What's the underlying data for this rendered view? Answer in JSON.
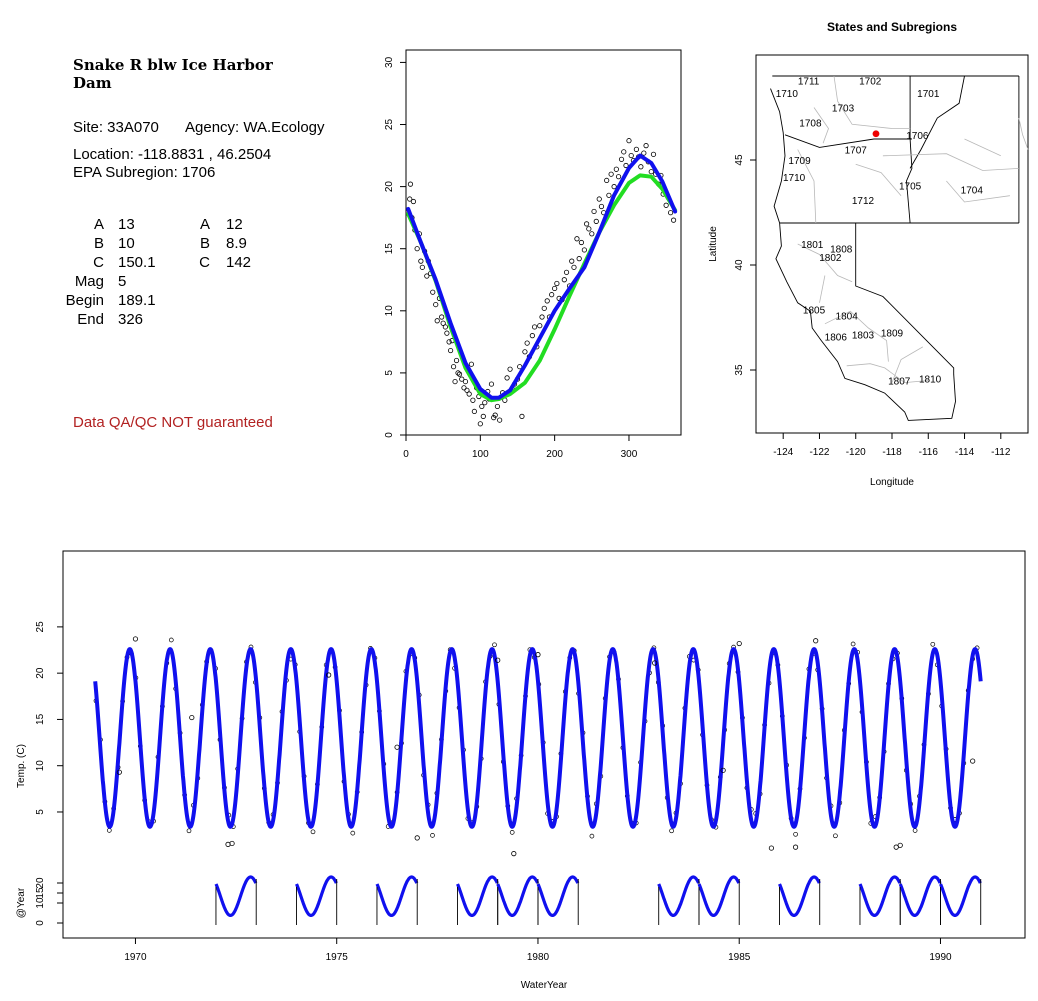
{
  "station": {
    "title": "Snake R blw Ice Harbor Dam",
    "site_label": "Site: 33A070",
    "agency_label": "Agency: WA.Ecology",
    "location_label": "Location: -118.8831 , 46.2504",
    "subregion_label": "EPA Subregion: 1706"
  },
  "params": {
    "rows": [
      {
        "label": "A",
        "v1": "13",
        "label2": "A",
        "v2": "12"
      },
      {
        "label": "B",
        "v1": "10",
        "label2": "B",
        "v2": "8.9"
      },
      {
        "label": "C",
        "v1": "150.1",
        "label2": "C",
        "v2": "142"
      },
      {
        "label": "Mag",
        "v1": "5",
        "label2": "",
        "v2": ""
      },
      {
        "label": "Begin",
        "v1": "189.1",
        "label2": "",
        "v2": ""
      },
      {
        "label": "End",
        "v1": "326",
        "label2": "",
        "v2": ""
      }
    ]
  },
  "disclaimer": "Data QA/QC NOT guaranteed",
  "colors": {
    "blue": "#1010ee",
    "green": "#22dd22",
    "red": "#ee0000",
    "accent_text": "#b22222"
  },
  "chart_data": [
    {
      "type": "scatter",
      "id": "seasonal",
      "title": "",
      "xlabel": "",
      "ylabel": "",
      "xlim": [
        0,
        370
      ],
      "ylim": [
        0,
        31
      ],
      "x_ticks": [
        0,
        100,
        200,
        300
      ],
      "y_ticks": [
        0,
        5,
        10,
        15,
        20,
        25,
        30
      ],
      "series": [
        {
          "style": "curve",
          "color": "blue",
          "x": [
            3,
            20,
            40,
            60,
            80,
            100,
            115,
            125,
            140,
            160,
            180,
            200,
            220,
            240,
            260,
            280,
            300,
            315,
            330,
            345,
            362
          ],
          "y": [
            18.2,
            15.5,
            12.5,
            9.0,
            5.8,
            3.7,
            3.0,
            3.0,
            3.6,
            5.6,
            7.8,
            10.0,
            11.8,
            13.5,
            16.3,
            19.3,
            21.5,
            22.5,
            21.9,
            20.4,
            18.0
          ]
        },
        {
          "style": "curve",
          "color": "green",
          "x": [
            3,
            20,
            40,
            60,
            80,
            100,
            115,
            125,
            140,
            160,
            180,
            200,
            220,
            240,
            260,
            280,
            300,
            315,
            330,
            345,
            362
          ],
          "y": [
            17.8,
            15.5,
            12.4,
            8.7,
            5.4,
            3.3,
            2.8,
            2.9,
            3.3,
            4.2,
            6.0,
            8.5,
            11.2,
            13.8,
            16.3,
            18.5,
            20.3,
            20.9,
            20.8,
            19.8,
            18.1
          ]
        },
        {
          "style": "points",
          "x": [
            5,
            6,
            8,
            10,
            12,
            15,
            18,
            20,
            22,
            25,
            28,
            30,
            33,
            36,
            40,
            42,
            45,
            48,
            50,
            53,
            55,
            58,
            60,
            62,
            64,
            66,
            68,
            70,
            72,
            75,
            78,
            80,
            82,
            85,
            88,
            90,
            92,
            95,
            98,
            100,
            102,
            104,
            106,
            110,
            112,
            115,
            118,
            120,
            123,
            126,
            130,
            133,
            136,
            140,
            143,
            146,
            150,
            153,
            156,
            160,
            163,
            166,
            170,
            173,
            176,
            180,
            183,
            186,
            190,
            193,
            196,
            200,
            203,
            206,
            210,
            213,
            216,
            220,
            223,
            226,
            230,
            233,
            236,
            240,
            243,
            246,
            250,
            253,
            256,
            260,
            263,
            266,
            270,
            273,
            276,
            280,
            283,
            286,
            290,
            293,
            296,
            300,
            303,
            306,
            310,
            313,
            316,
            320,
            323,
            326,
            330,
            333,
            336,
            340,
            343,
            346,
            350,
            353,
            356,
            360
          ],
          "y": [
            19.0,
            20.2,
            17.5,
            18.8,
            16.5,
            15.0,
            16.2,
            14.0,
            13.5,
            14.8,
            12.8,
            14.0,
            13.0,
            11.5,
            10.5,
            9.2,
            11.0,
            9.5,
            9.0,
            8.7,
            8.2,
            7.5,
            6.8,
            7.6,
            5.5,
            4.3,
            6.0,
            5.0,
            4.9,
            4.5,
            3.8,
            4.3,
            3.6,
            3.3,
            5.7,
            2.8,
            1.9,
            3.8,
            3.1,
            0.9,
            2.3,
            1.5,
            2.6,
            3.5,
            2.9,
            4.1,
            1.4,
            1.6,
            2.3,
            1.2,
            3.4,
            2.8,
            4.6,
            5.3,
            3.7,
            4.1,
            4.5,
            5.5,
            1.5,
            6.7,
            7.4,
            6.3,
            8.0,
            8.7,
            7.1,
            8.8,
            9.5,
            10.2,
            10.8,
            9.5,
            11.3,
            11.8,
            12.2,
            11.0,
            10.9,
            12.5,
            13.1,
            12.0,
            14.0,
            13.5,
            15.8,
            14.2,
            15.5,
            14.9,
            17.0,
            16.6,
            16.2,
            18.0,
            17.2,
            19.0,
            18.4,
            17.9,
            20.5,
            19.3,
            21.0,
            20.0,
            21.4,
            20.8,
            22.2,
            22.8,
            21.7,
            23.7,
            22.5,
            22.1,
            23.0,
            22.4,
            21.6,
            22.7,
            23.3,
            22.0,
            21.2,
            22.6,
            21.0,
            20.2,
            20.9,
            19.4,
            18.5,
            19.1,
            17.9,
            17.3
          ]
        }
      ]
    },
    {
      "type": "scatter",
      "id": "map",
      "title": "States and Subregions",
      "xlabel": "Longitude",
      "ylabel": "Latitude",
      "xlim": [
        -125.5,
        -110.5
      ],
      "ylim": [
        32,
        50
      ],
      "x_ticks": [
        -124,
        -122,
        -120,
        -118,
        -116,
        -114,
        -112
      ],
      "y_ticks": [
        35,
        40,
        45
      ],
      "site": {
        "x": -118.8831,
        "y": 46.2504
      },
      "region_labels": [
        {
          "name": "1702",
          "x": -119.2,
          "y": 48.6
        },
        {
          "name": "1701",
          "x": -116.0,
          "y": 48.0
        },
        {
          "name": "1711",
          "x": -122.6,
          "y": 48.6
        },
        {
          "name": "1710",
          "x": -123.8,
          "y": 48.0
        },
        {
          "name": "1703",
          "x": -120.7,
          "y": 47.3
        },
        {
          "name": "1708",
          "x": -122.5,
          "y": 46.6
        },
        {
          "name": "1706",
          "x": -116.6,
          "y": 46.0
        },
        {
          "name": "1707",
          "x": -120.0,
          "y": 45.3
        },
        {
          "name": "1709",
          "x": -123.1,
          "y": 44.8
        },
        {
          "name": "1710",
          "x": -123.4,
          "y": 44.0
        },
        {
          "name": "1705",
          "x": -117.0,
          "y": 43.6
        },
        {
          "name": "1704",
          "x": -113.6,
          "y": 43.4
        },
        {
          "name": "1712",
          "x": -119.6,
          "y": 42.9
        },
        {
          "name": "1801",
          "x": -122.4,
          "y": 40.8
        },
        {
          "name": "1808",
          "x": -120.8,
          "y": 40.6
        },
        {
          "name": "1802",
          "x": -121.4,
          "y": 40.2
        },
        {
          "name": "1805",
          "x": -122.3,
          "y": 37.7
        },
        {
          "name": "1804",
          "x": -120.5,
          "y": 37.4
        },
        {
          "name": "1806",
          "x": -121.1,
          "y": 36.4
        },
        {
          "name": "1803",
          "x": -119.6,
          "y": 36.5
        },
        {
          "name": "1809",
          "x": -118.0,
          "y": 36.6
        },
        {
          "name": "1807",
          "x": -117.6,
          "y": 34.3
        },
        {
          "name": "1810",
          "x": -115.9,
          "y": 34.4
        }
      ]
    },
    {
      "type": "line",
      "id": "timeseries",
      "title": "",
      "xlabel": "WaterYear",
      "ylabel": "Temp. (C)",
      "ylabel2": "@Year",
      "xlim": [
        1968.2,
        1992.1
      ],
      "ylim": [
        1,
        30
      ],
      "x_ticks": [
        1970,
        1975,
        1980,
        1985,
        1990
      ],
      "y_ticks": [
        5,
        10,
        15,
        20,
        25
      ],
      "y2_ticks": [
        0,
        10,
        15,
        20
      ],
      "y2_tick_labels": [
        "0",
        "10",
        "15",
        "20"
      ],
      "series": [
        {
          "name": "",
          "color": "blue",
          "x_start": 1969.0,
          "x_end": 1991.0,
          "mean": 13,
          "amp": 9.6,
          "peak_phase": 0.86
        },
        {
          "name": "",
          "style": "outliers",
          "x": [
            1969.6,
            1970.0,
            1971.4,
            1972.3,
            1972.4,
            1974.8,
            1976.5,
            1977.0,
            1979.0,
            1979.4,
            1980.0,
            1982.9,
            1984.6,
            1985.0,
            1985.8,
            1986.4,
            1986.9,
            1988.9,
            1989.0,
            1990.8
          ],
          "y": [
            9.3,
            23.7,
            15.2,
            1.5,
            1.6,
            19.8,
            12.0,
            2.2,
            21.4,
            0.5,
            22.0,
            21.1,
            9.5,
            23.2,
            1.1,
            1.2,
            23.5,
            1.2,
            1.4,
            10.5
          ]
        },
        {
          "name": "",
          "style": "yearly",
          "segments": [
            [
              1972.0,
              1973.0
            ],
            [
              1974.0,
              1975.0
            ],
            [
              1976.0,
              1977.0
            ],
            [
              1978.0,
              1979.0
            ],
            [
              1979.0,
              1980.0
            ],
            [
              1980.0,
              1981.0
            ],
            [
              1983.0,
              1984.0
            ],
            [
              1984.0,
              1985.0
            ],
            [
              1986.0,
              1987.0
            ],
            [
              1988.0,
              1989.0
            ],
            [
              1989.0,
              1990.0
            ],
            [
              1990.0,
              1991.0
            ]
          ]
        }
      ]
    }
  ]
}
